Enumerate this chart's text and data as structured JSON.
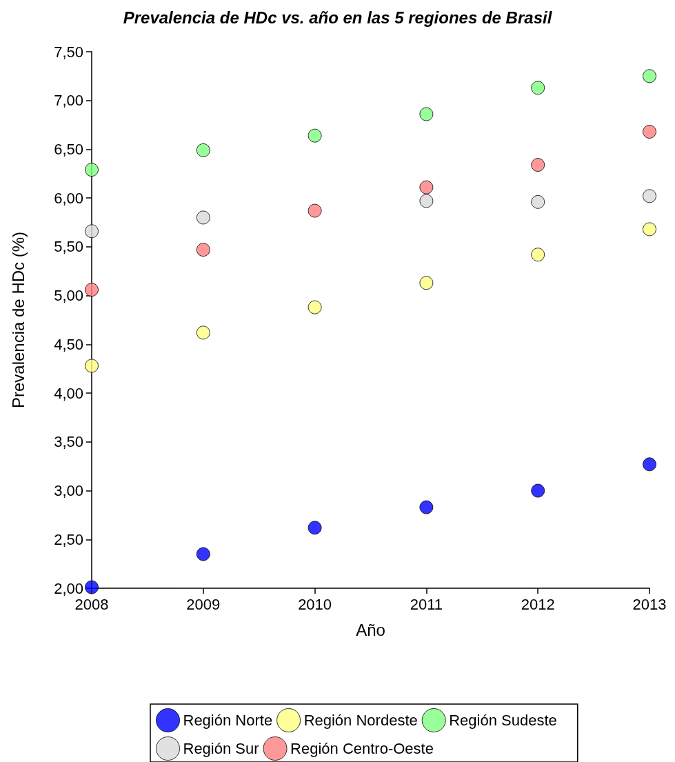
{
  "chart_data": {
    "type": "scatter",
    "title": "Prevalencia de HDc vs. año en las 5 regiones de Brasil",
    "xlabel": "Año",
    "ylabel": "Prevalencia de HDc (%)",
    "x": [
      2008,
      2009,
      2010,
      2011,
      2012,
      2013
    ],
    "series": [
      {
        "name": "Región Norte",
        "color": "#0000ff",
        "values": [
          2.01,
          2.35,
          2.62,
          2.83,
          3.0,
          3.27
        ]
      },
      {
        "name": "Región Nordeste",
        "color": "#ffff80",
        "values": [
          4.28,
          4.62,
          4.88,
          5.13,
          5.42,
          5.68
        ]
      },
      {
        "name": "Región Sudeste",
        "color": "#80ff80",
        "values": [
          6.29,
          6.49,
          6.64,
          6.86,
          7.13,
          7.25
        ]
      },
      {
        "name": "Región Sur",
        "color": "#d9d9d9",
        "values": [
          5.66,
          5.8,
          null,
          5.97,
          5.96,
          6.02
        ]
      },
      {
        "name": "Región Centro-Oeste",
        "color": "#ff8080",
        "values": [
          5.06,
          5.47,
          5.87,
          6.11,
          6.34,
          6.68
        ]
      }
    ],
    "xlim": [
      2008,
      2013
    ],
    "xticks": [
      2008,
      2009,
      2010,
      2011,
      2012,
      2013
    ],
    "ylim": [
      2,
      7.5
    ],
    "yticks": [
      {
        "value": 2,
        "label": "2,00"
      },
      {
        "value": 2.5,
        "label": "2,50"
      },
      {
        "value": 3,
        "label": "3,00"
      },
      {
        "value": 3.5,
        "label": "3,50"
      },
      {
        "value": 4,
        "label": "4,00"
      },
      {
        "value": 4.5,
        "label": "4,50"
      },
      {
        "value": 5,
        "label": "5,00"
      },
      {
        "value": 5.5,
        "label": "5,50"
      },
      {
        "value": 6,
        "label": "6,00"
      },
      {
        "value": 6.5,
        "label": "6,50"
      },
      {
        "value": 7,
        "label": "7,00"
      },
      {
        "value": 7.5,
        "label": "7,50"
      }
    ],
    "grid": false,
    "legend": "bottom",
    "marker": "circle"
  }
}
